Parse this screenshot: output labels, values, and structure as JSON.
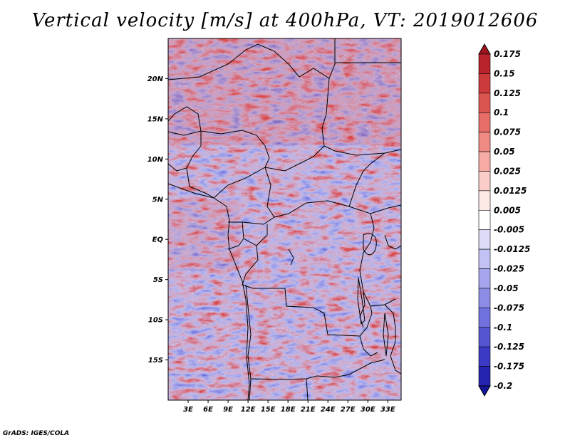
{
  "title": "Vertical velocity [m/s] at 400hPa, VT: 2019012606",
  "credit": "GrADS: IGES/COLA",
  "map": {
    "lon_range": [
      0,
      35
    ],
    "lat_range": [
      -20,
      25
    ],
    "lat_ticks": [
      {
        "value": 20,
        "label": "20N"
      },
      {
        "value": 15,
        "label": "15N"
      },
      {
        "value": 10,
        "label": "10N"
      },
      {
        "value": 5,
        "label": "5N"
      },
      {
        "value": 0,
        "label": "EQ"
      },
      {
        "value": -5,
        "label": "5S"
      },
      {
        "value": -10,
        "label": "10S"
      },
      {
        "value": -15,
        "label": "15S"
      }
    ],
    "lon_ticks": [
      {
        "value": 3,
        "label": "3E"
      },
      {
        "value": 6,
        "label": "6E"
      },
      {
        "value": 9,
        "label": "9E"
      },
      {
        "value": 12,
        "label": "12E"
      },
      {
        "value": 15,
        "label": "15E"
      },
      {
        "value": 18,
        "label": "18E"
      },
      {
        "value": 21,
        "label": "21E"
      },
      {
        "value": 24,
        "label": "24E"
      },
      {
        "value": 27,
        "label": "27E"
      },
      {
        "value": 30,
        "label": "30E"
      },
      {
        "value": 33,
        "label": "33E"
      }
    ]
  },
  "colorbar": {
    "levels": [
      "0.175",
      "0.15",
      "0.125",
      "0.1",
      "0.075",
      "0.05",
      "0.025",
      "0.0125",
      "0.005",
      "-0.005",
      "-0.0125",
      "-0.025",
      "-0.05",
      "-0.075",
      "-0.1",
      "-0.125",
      "-0.175",
      "-0.2"
    ],
    "colors": [
      "#a0141e",
      "#b9232c",
      "#cd3a3c",
      "#dc5450",
      "#e76e68",
      "#f08a84",
      "#f6aba4",
      "#fbcdc8",
      "#fde9e6",
      "#ffffff",
      "#dcdcf8",
      "#c2c2f4",
      "#a6a6ee",
      "#8c8ce6",
      "#7070de",
      "#5555d2",
      "#3a3ac4",
      "#2424b0",
      "#14149a"
    ]
  }
}
